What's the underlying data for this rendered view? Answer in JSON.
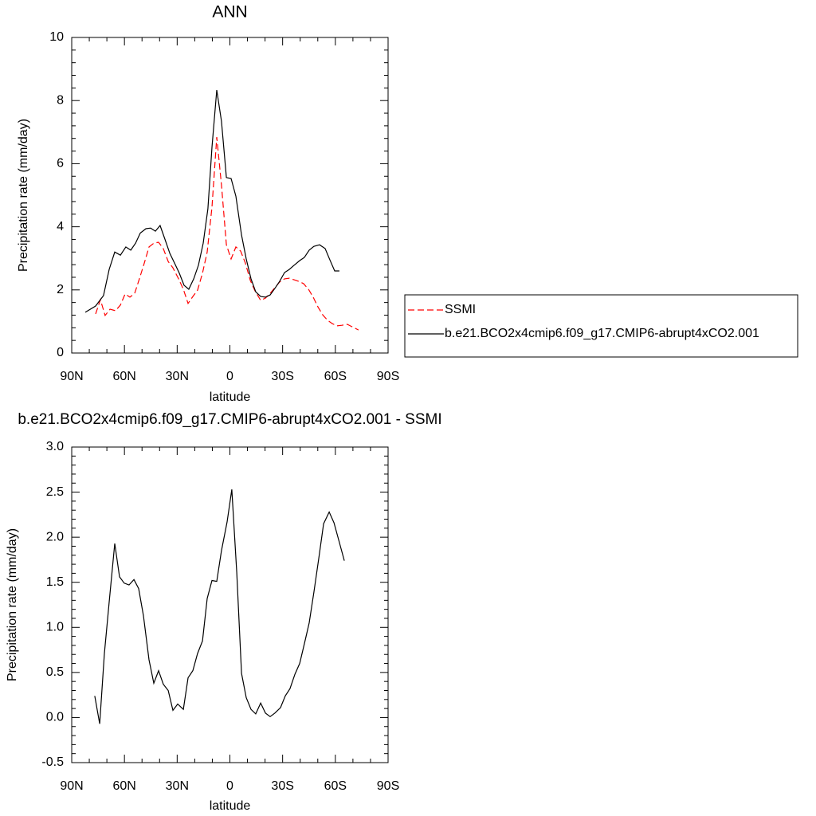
{
  "chart_data": [
    {
      "type": "line",
      "title": "ANN",
      "xlabel": "latitude",
      "ylabel": "Precipitation rate (mm/day)",
      "xlim": [
        90,
        -90
      ],
      "xticks": [
        {
          "value": 90,
          "label": "90N"
        },
        {
          "value": 60,
          "label": "60N"
        },
        {
          "value": 30,
          "label": "30N"
        },
        0,
        {
          "value": -30,
          "label": "30S"
        },
        {
          "value": -60,
          "label": "60S"
        },
        {
          "value": -90,
          "label": "90S"
        }
      ],
      "ylim": [
        0,
        10
      ],
      "yticks": [
        0,
        2,
        4,
        6,
        8,
        10
      ],
      "legend": "right",
      "series": [
        {
          "name": "SSMI",
          "color": "#ff0000",
          "linestyle": "dashed",
          "x": [
            76.4,
            73.7,
            71.0,
            68.2,
            65.1,
            62.3,
            59.6,
            56.9,
            54.2,
            51.5,
            48.7,
            46.0,
            43.3,
            40.6,
            37.9,
            35.1,
            32.4,
            29.2,
            26.5,
            23.8,
            21.1,
            18.4,
            15.6,
            12.9,
            10.2,
            7.5,
            4.8,
            2.0,
            -0.7,
            -3.4,
            -6.1,
            -8.8,
            -11.6,
            -14.3,
            -17.5,
            -20.2,
            -22.9,
            -25.6,
            -28.3,
            -31.1,
            -33.8,
            -36.5,
            -39.2,
            -41.9,
            -44.7,
            -47.4,
            -50.1,
            -52.8,
            -55.5,
            -58.3,
            -61.0,
            -63.7,
            -66.8,
            -69.6,
            -73.2
          ],
          "values": [
            1.24,
            1.69,
            1.19,
            1.39,
            1.34,
            1.52,
            1.87,
            1.77,
            1.89,
            2.35,
            2.85,
            3.36,
            3.48,
            3.51,
            3.31,
            2.9,
            2.7,
            2.35,
            2.02,
            1.57,
            1.79,
            1.99,
            2.53,
            3.2,
            4.62,
            6.84,
            5.33,
            3.43,
            2.98,
            3.36,
            3.23,
            2.85,
            2.3,
            1.97,
            1.67,
            1.74,
            1.89,
            2.07,
            2.25,
            2.35,
            2.37,
            2.32,
            2.27,
            2.2,
            2.02,
            1.77,
            1.46,
            1.21,
            1.04,
            0.93,
            0.86,
            0.88,
            0.91,
            0.83,
            0.73
          ]
        },
        {
          "name": "b.e21.BCO2x4cmip6.f09_g17.CMIP6-abrupt4xCO2.001",
          "color": "#000000",
          "linestyle": "solid",
          "x": [
            82.3,
            76.4,
            71.9,
            68.7,
            65.5,
            62.3,
            59.2,
            56.4,
            53.7,
            51.0,
            47.8,
            45.1,
            42.4,
            39.7,
            37.0,
            34.2,
            31.5,
            28.8,
            26.1,
            23.4,
            20.6,
            17.9,
            15.2,
            12.5,
            10.2,
            7.5,
            4.8,
            2.0,
            -0.7,
            -3.4,
            -6.6,
            -9.3,
            -12.0,
            -14.7,
            -17.5,
            -20.2,
            -22.9,
            -25.6,
            -28.3,
            -31.1,
            -33.8,
            -36.5,
            -39.7,
            -42.4,
            -45.1,
            -47.8,
            -51.0,
            -54.2,
            -56.9,
            -59.6,
            -62.3
          ],
          "values": [
            1.29,
            1.49,
            1.82,
            2.65,
            3.2,
            3.1,
            3.36,
            3.26,
            3.48,
            3.8,
            3.94,
            3.96,
            3.86,
            4.04,
            3.61,
            3.16,
            2.85,
            2.53,
            2.15,
            2.02,
            2.35,
            2.78,
            3.48,
            4.57,
            6.52,
            8.33,
            7.35,
            5.56,
            5.53,
            4.97,
            3.74,
            2.98,
            2.35,
            1.94,
            1.79,
            1.77,
            1.84,
            2.05,
            2.27,
            2.55,
            2.65,
            2.78,
            2.93,
            3.03,
            3.26,
            3.38,
            3.43,
            3.31,
            2.95,
            2.6,
            2.6
          ]
        }
      ]
    },
    {
      "type": "line",
      "title": "b.e21.BCO2x4cmip6.f09_g17.CMIP6-abrupt4xCO2.001 - SSMI",
      "xlabel": "latitude",
      "ylabel": "Precipitation rate (mm/day)",
      "xlim": [
        90,
        -90
      ],
      "xticks": [
        {
          "value": 90,
          "label": "90N"
        },
        {
          "value": 60,
          "label": "60N"
        },
        {
          "value": 30,
          "label": "30N"
        },
        0,
        {
          "value": -30,
          "label": "30S"
        },
        {
          "value": -60,
          "label": "60S"
        },
        {
          "value": -90,
          "label": "90S"
        }
      ],
      "ylim": [
        -0.5,
        3.0
      ],
      "yticks": [
        -0.5,
        {
          "value": 0,
          "label": "0.0"
        },
        0.5,
        {
          "value": 1,
          "label": "1.0"
        },
        1.5,
        {
          "value": 2,
          "label": "2.0"
        },
        2.5,
        {
          "value": 3,
          "label": "3.0"
        }
      ],
      "series": [
        {
          "color": "#000000",
          "linestyle": "solid",
          "x": [
            76.9,
            74.1,
            71.4,
            68.7,
            65.5,
            62.8,
            60.1,
            57.4,
            54.6,
            51.9,
            49.2,
            46.0,
            43.3,
            40.6,
            37.9,
            35.1,
            32.4,
            29.7,
            26.5,
            23.8,
            21.1,
            18.4,
            15.6,
            12.9,
            10.2,
            7.5,
            4.8,
            1.6,
            -1.1,
            -3.9,
            -6.6,
            -9.3,
            -12.0,
            -14.7,
            -17.5,
            -20.2,
            -22.9,
            -25.6,
            -28.8,
            -31.5,
            -34.2,
            -37.0,
            -39.7,
            -42.4,
            -45.1,
            -47.8,
            -50.6,
            -53.3,
            -56.5,
            -59.2,
            -61.9,
            -65.1
          ],
          "values": [
            0.24,
            -0.07,
            0.71,
            1.28,
            1.93,
            1.56,
            1.49,
            1.47,
            1.53,
            1.43,
            1.13,
            0.64,
            0.38,
            0.52,
            0.37,
            0.3,
            0.08,
            0.15,
            0.09,
            0.44,
            0.52,
            0.71,
            0.85,
            1.32,
            1.52,
            1.51,
            1.85,
            2.17,
            2.53,
            1.61,
            0.49,
            0.22,
            0.09,
            0.04,
            0.16,
            0.05,
            0.01,
            0.05,
            0.11,
            0.24,
            0.32,
            0.48,
            0.6,
            0.82,
            1.05,
            1.39,
            1.77,
            2.15,
            2.28,
            2.16,
            1.97,
            1.74
          ]
        }
      ]
    }
  ]
}
